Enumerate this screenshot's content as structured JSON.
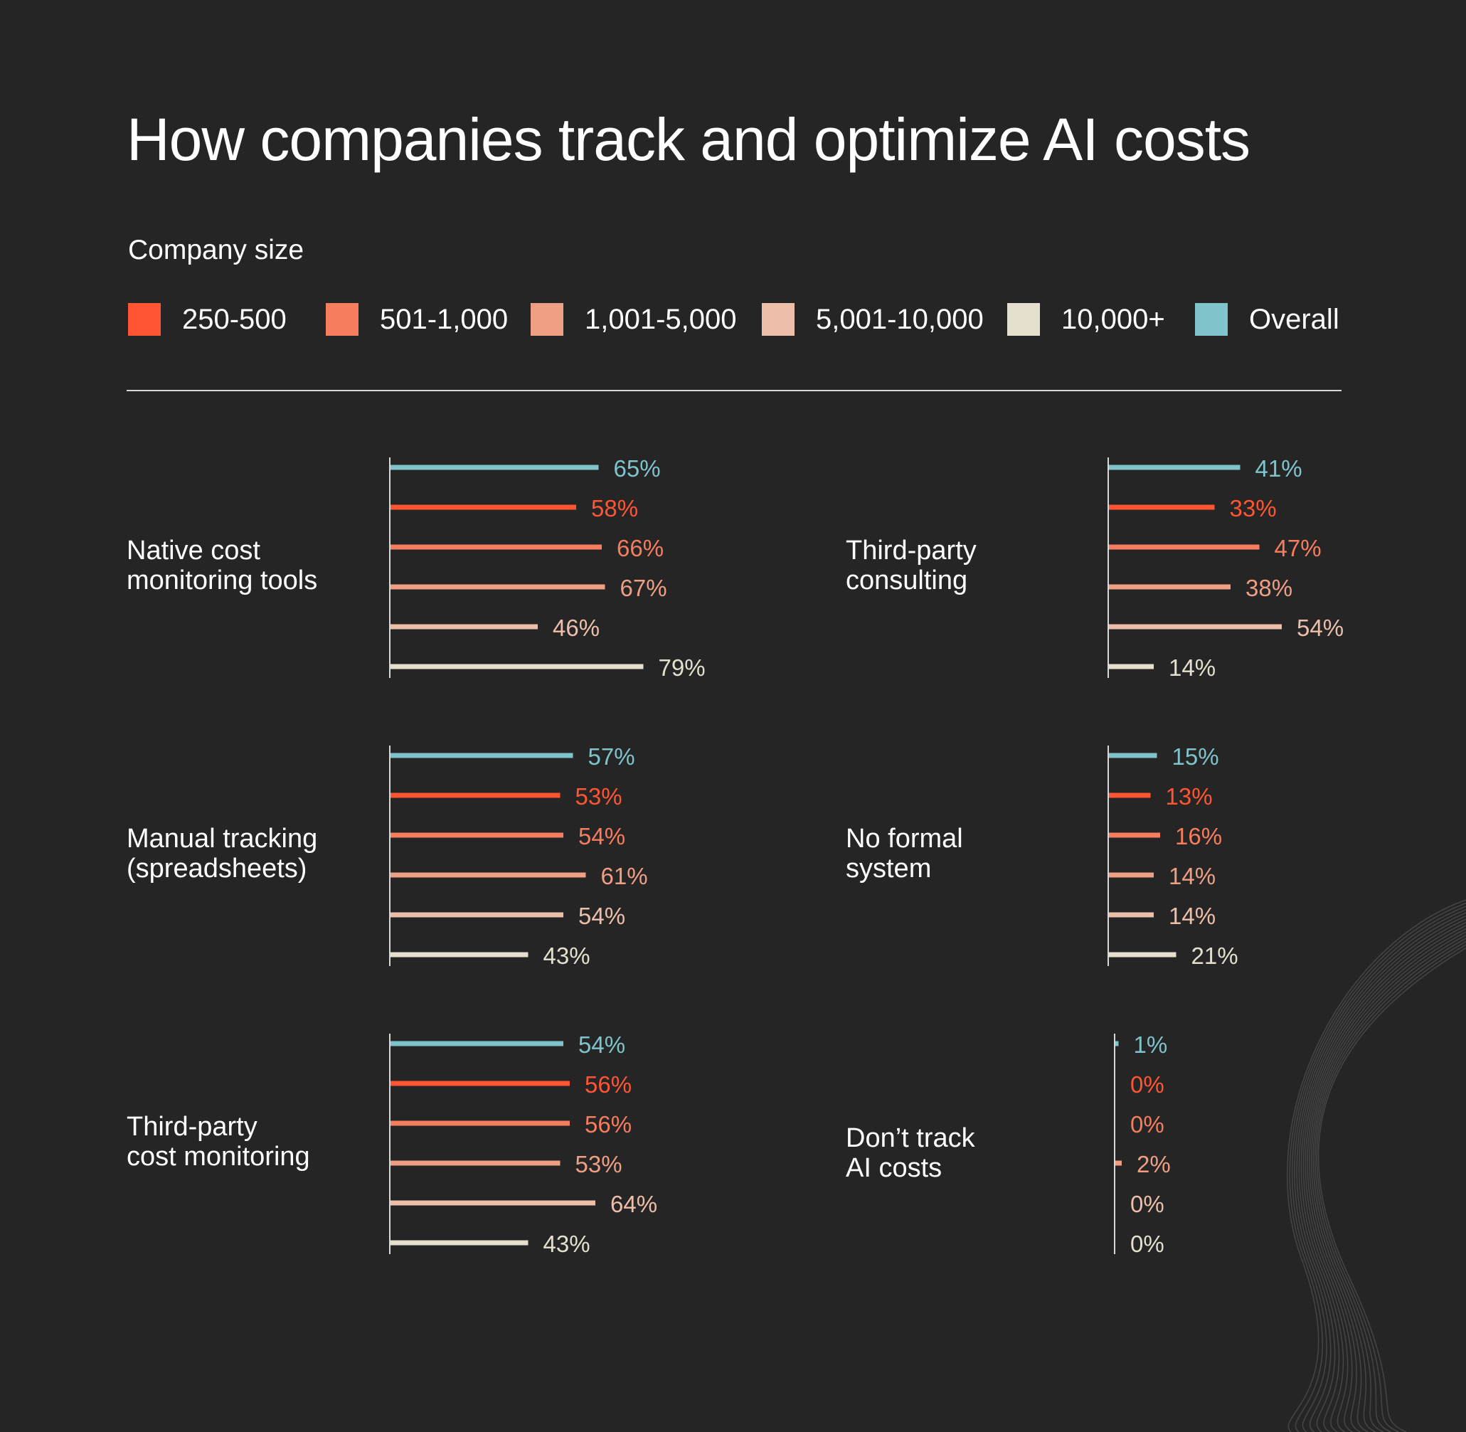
{
  "title": "How companies track and optimize AI costs",
  "legend": {
    "title": "Company size",
    "items": [
      {
        "label": "250-500",
        "color": "#FF5533"
      },
      {
        "label": "501-1,000",
        "color": "#F67D5E"
      },
      {
        "label": "1,001-5,000",
        "color": "#EE9F84"
      },
      {
        "label": "5,001-10,000",
        "color": "#EDBFAB"
      },
      {
        "label": "10,000+",
        "color": "#E5DFCE"
      },
      {
        "label": "Overall",
        "color": "#7FC3CB"
      }
    ]
  },
  "chart_data": [
    {
      "type": "bar",
      "title": "Native cost monitoring tools",
      "title_lines": [
        "Native cost",
        "monitoring tools"
      ],
      "series": [
        {
          "name": "Overall",
          "value": 65,
          "label": "65%"
        },
        {
          "name": "250-500",
          "value": 58,
          "label": "58%"
        },
        {
          "name": "501-1,000",
          "value": 66,
          "label": "66%"
        },
        {
          "name": "1,001-5,000",
          "value": 67,
          "label": "67%"
        },
        {
          "name": "5,001-10,000",
          "value": 46,
          "label": "46%"
        },
        {
          "name": "10,000+",
          "value": 79,
          "label": "79%"
        }
      ]
    },
    {
      "type": "bar",
      "title": "Third-party consulting",
      "title_lines": [
        "Third-party",
        "consulting"
      ],
      "series": [
        {
          "name": "Overall",
          "value": 41,
          "label": "41%"
        },
        {
          "name": "250-500",
          "value": 33,
          "label": "33%"
        },
        {
          "name": "501-1,000",
          "value": 47,
          "label": "47%"
        },
        {
          "name": "1,001-5,000",
          "value": 38,
          "label": "38%"
        },
        {
          "name": "5,001-10,000",
          "value": 54,
          "label": "54%"
        },
        {
          "name": "10,000+",
          "value": 14,
          "label": "14%"
        }
      ]
    },
    {
      "type": "bar",
      "title": "Manual tracking (spreadsheets)",
      "title_lines": [
        "Manual tracking",
        "(spreadsheets)"
      ],
      "series": [
        {
          "name": "Overall",
          "value": 57,
          "label": "57%"
        },
        {
          "name": "250-500",
          "value": 53,
          "label": "53%"
        },
        {
          "name": "501-1,000",
          "value": 54,
          "label": "54%"
        },
        {
          "name": "1,001-5,000",
          "value": 61,
          "label": "61%"
        },
        {
          "name": "5,001-10,000",
          "value": 54,
          "label": "54%"
        },
        {
          "name": "10,000+",
          "value": 43,
          "label": "43%"
        }
      ]
    },
    {
      "type": "bar",
      "title": "No formal system",
      "title_lines": [
        "No formal",
        "system"
      ],
      "series": [
        {
          "name": "Overall",
          "value": 15,
          "label": "15%"
        },
        {
          "name": "250-500",
          "value": 13,
          "label": "13%"
        },
        {
          "name": "501-1,000",
          "value": 16,
          "label": "16%"
        },
        {
          "name": "1,001-5,000",
          "value": 14,
          "label": "14%"
        },
        {
          "name": "5,001-10,000",
          "value": 14,
          "label": "14%"
        },
        {
          "name": "10,000+",
          "value": 21,
          "label": "21%"
        }
      ]
    },
    {
      "type": "bar",
      "title": "Third-party cost monitoring",
      "title_lines": [
        "Third-party",
        "cost monitoring"
      ],
      "series": [
        {
          "name": "Overall",
          "value": 54,
          "label": "54%"
        },
        {
          "name": "250-500",
          "value": 56,
          "label": "56%"
        },
        {
          "name": "501-1,000",
          "value": 56,
          "label": "56%"
        },
        {
          "name": "1,001-5,000",
          "value": 53,
          "label": "53%"
        },
        {
          "name": "5,001-10,000",
          "value": 64,
          "label": "64%"
        },
        {
          "name": "10,000+",
          "value": 43,
          "label": "43%"
        }
      ]
    },
    {
      "type": "bar",
      "title": "Don’t track AI costs",
      "title_lines": [
        "Don’t track",
        "AI costs"
      ],
      "series": [
        {
          "name": "Overall",
          "value": 1,
          "label": "1%"
        },
        {
          "name": "250-500",
          "value": 0,
          "label": "0%"
        },
        {
          "name": "501-1,000",
          "value": 0,
          "label": "0%"
        },
        {
          "name": "1,001-5,000",
          "value": 2,
          "label": "2%"
        },
        {
          "name": "5,001-10,000",
          "value": 0,
          "label": "0%"
        },
        {
          "name": "10,000+",
          "value": 0,
          "label": "0%"
        }
      ]
    }
  ]
}
